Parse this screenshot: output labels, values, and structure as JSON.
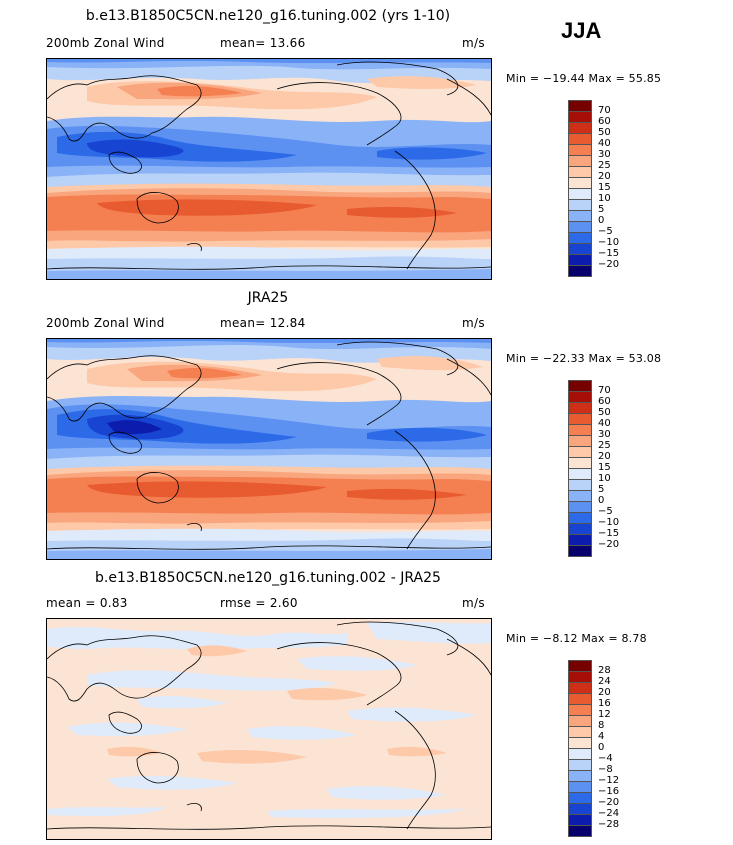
{
  "season": "JJA",
  "colors": {
    "full": [
      "#08006d",
      "#0c1dad",
      "#1844d2",
      "#2c6ae8",
      "#5c91f2",
      "#8ab2f6",
      "#b8d2f8",
      "#dfeafb",
      "#fce4d4",
      "#fdc9a8",
      "#f9a57e",
      "#f48051",
      "#e85a30",
      "#cf2f16",
      "#a50f08",
      "#760000"
    ],
    "diff": [
      "#08006d",
      "#0c1dad",
      "#1844d2",
      "#2c6ae8",
      "#5c91f2",
      "#8ab2f6",
      "#b8d2f8",
      "#dfeafb",
      "#fce4d4",
      "#fdc9a8",
      "#f9a57e",
      "#f48051",
      "#e85a30",
      "#cf2f16",
      "#a50f08",
      "#760000"
    ]
  },
  "panels": [
    {
      "title": "b.e13.B1850C5CN.ne120_g16.tuning.002 (yrs 1-10)",
      "left_label": "200mb Zonal Wind",
      "mid_label": "mean=  13.66",
      "units": "m/s",
      "minmax": "Min = −19.44 Max =  55.85",
      "cb_labels": [
        "70",
        "60",
        "50",
        "40",
        "30",
        "25",
        "20",
        "15",
        "10",
        "5",
        "0",
        "−5",
        "−10",
        "−15",
        "−20"
      ]
    },
    {
      "title": "JRA25",
      "left_label": "200mb Zonal Wind",
      "mid_label": "mean=  12.84",
      "units": "m/s",
      "minmax": "Min = −22.33 Max =  53.08",
      "cb_labels": [
        "70",
        "60",
        "50",
        "40",
        "30",
        "25",
        "20",
        "15",
        "10",
        "5",
        "0",
        "−5",
        "−10",
        "−15",
        "−20"
      ]
    },
    {
      "title": "b.e13.B1850C5CN.ne120_g16.tuning.002 - JRA25",
      "left_label": "mean =    0.83",
      "mid_label": "rmse =    2.60",
      "units": "m/s",
      "minmax": "Min =  −8.12 Max =    8.78",
      "cb_labels": [
        "28",
        "24",
        "20",
        "16",
        "12",
        "8",
        "4",
        "0",
        "−4",
        "−8",
        "−12",
        "−16",
        "−20",
        "−24",
        "−28"
      ]
    }
  ],
  "chart_data": [
    {
      "type": "heatmap",
      "title": "b.e13.B1850C5CN.ne120_g16.tuning.002 (yrs 1-10)",
      "variable": "200mb Zonal Wind",
      "units": "m/s",
      "mean": 13.66,
      "min": -19.44,
      "max": 55.85,
      "contour_levels": [
        -20,
        -15,
        -10,
        -5,
        0,
        5,
        10,
        15,
        20,
        25,
        30,
        40,
        50,
        60,
        70
      ],
      "projection": "cylindrical equidistant, centered on 180 (Pacific)"
    },
    {
      "type": "heatmap",
      "title": "JRA25",
      "variable": "200mb Zonal Wind",
      "units": "m/s",
      "mean": 12.84,
      "min": -22.33,
      "max": 53.08,
      "contour_levels": [
        -20,
        -15,
        -10,
        -5,
        0,
        5,
        10,
        15,
        20,
        25,
        30,
        40,
        50,
        60,
        70
      ]
    },
    {
      "type": "heatmap",
      "title": "b.e13.B1850C5CN.ne120_g16.tuning.002 - JRA25",
      "units": "m/s",
      "mean": 0.83,
      "rmse": 2.6,
      "min": -8.12,
      "max": 8.78,
      "contour_levels": [
        -28,
        -24,
        -20,
        -16,
        -12,
        -8,
        -4,
        0,
        4,
        8,
        12,
        16,
        20,
        24,
        28
      ]
    }
  ]
}
